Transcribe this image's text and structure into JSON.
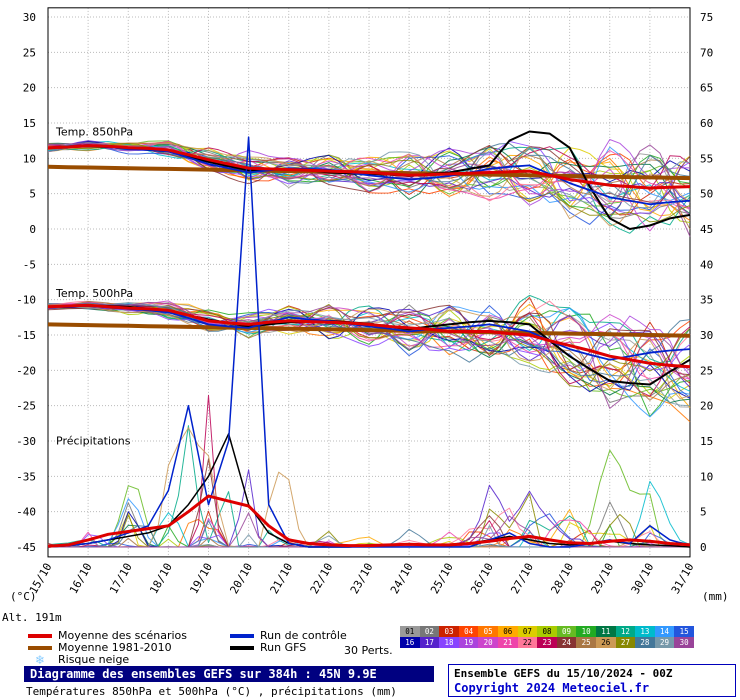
{
  "legend": {
    "items": [
      {
        "label": "Moyenne des scénarios",
        "color": "#dd0000",
        "type": "line"
      },
      {
        "label": "Moyenne 1981-2010",
        "color": "#994c00",
        "type": "line"
      },
      {
        "label": "Risque neige",
        "color": "#88ccff",
        "type": "snowflake"
      },
      {
        "label": "Run de contrôle",
        "color": "#0022cc",
        "type": "line"
      },
      {
        "label": "Run GFS",
        "color": "#000000",
        "type": "line"
      }
    ],
    "perts_label": "30 Perts.",
    "member_ids": [
      "01",
      "02",
      "03",
      "04",
      "05",
      "06",
      "07",
      "08",
      "09",
      "10",
      "11",
      "12",
      "13",
      "14",
      "15",
      "16",
      "17",
      "18",
      "19",
      "20",
      "21",
      "22",
      "23",
      "24",
      "25",
      "26",
      "27",
      "28",
      "29",
      "30"
    ]
  },
  "footer": {
    "title": "Diagramme des ensembles GEFS sur 384h : 45N 9.9E",
    "subtitle": "Températures 850hPa et 500hPa (°C) , précipitations (mm)",
    "run_info": "Ensemble GEFS du 15/10/2024 - 00Z",
    "copyright": "Copyright 2024 Meteociel.fr"
  },
  "chart_data": {
    "type": "line",
    "x_step_days": 0.5,
    "x_range_days": [
      0,
      16
    ],
    "axes": {
      "left_unit": "(°C)",
      "right_unit": "(mm)",
      "alt_label": "Alt. 191m",
      "left_ticks": [
        30,
        25,
        20,
        15,
        10,
        5,
        0,
        -5,
        -10,
        -15,
        -20,
        -25,
        -30,
        -35,
        -40,
        -45
      ],
      "right_ticks": [
        75,
        70,
        65,
        60,
        55,
        50,
        45,
        40,
        35,
        30,
        25,
        20,
        15,
        10,
        5,
        0
      ],
      "x_labels": [
        "15/10",
        "16/10",
        "17/10",
        "18/10",
        "19/10",
        "20/10",
        "21/10",
        "22/10",
        "23/10",
        "24/10",
        "25/10",
        "26/10",
        "27/10",
        "28/10",
        "29/10",
        "30/10",
        "31/10"
      ],
      "precip_zero_at_degC": -45
    },
    "panel_labels": {
      "t850": "Temp. 850hPa",
      "t500": "Temp. 500hPa",
      "precip": "Précipitations"
    },
    "colors": {
      "mean": "#dd0000",
      "clim": "#994c00",
      "control": "#0022cc",
      "gfs": "#000000",
      "grid": "#bbbbbb"
    },
    "series": {
      "t850": {
        "mean": [
          11.5,
          11.6,
          11.8,
          11.7,
          11.5,
          11.4,
          11.2,
          10.5,
          9.8,
          9.2,
          8.6,
          8.5,
          8.4,
          8.3,
          8.2,
          8.1,
          8.0,
          7.8,
          7.6,
          7.7,
          7.8,
          7.9,
          8.0,
          8.1,
          8.2,
          7.6,
          7.0,
          6.6,
          6.2,
          6.0,
          5.8,
          5.9,
          6.0
        ],
        "clim": [
          8.8,
          8.75,
          8.7,
          8.65,
          8.6,
          8.55,
          8.5,
          8.45,
          8.4,
          8.35,
          8.3,
          8.25,
          8.2,
          8.15,
          8.1,
          8.05,
          8.0,
          7.95,
          7.9,
          7.85,
          7.8,
          7.75,
          7.7,
          7.65,
          7.6,
          7.55,
          7.5,
          7.45,
          7.4,
          7.35,
          7.3,
          7.25,
          7.2
        ],
        "control": [
          11.5,
          11.7,
          11.9,
          11.6,
          11.3,
          11.2,
          11.0,
          10.1,
          9.2,
          8.6,
          8.0,
          8.3,
          8.6,
          8.5,
          8.4,
          8.0,
          7.6,
          7.3,
          7.0,
          7.2,
          7.5,
          8.0,
          8.5,
          8.8,
          9.0,
          7.8,
          6.5,
          5.5,
          4.5,
          4.0,
          3.5,
          3.8,
          4.0
        ],
        "gfs": [
          11.5,
          11.6,
          11.7,
          11.6,
          11.4,
          11.2,
          11.0,
          10.2,
          9.5,
          8.9,
          8.3,
          8.4,
          8.5,
          8.3,
          8.0,
          7.9,
          7.8,
          7.7,
          7.5,
          7.8,
          8.0,
          8.5,
          9.0,
          12.5,
          13.8,
          13.5,
          11.5,
          6.0,
          1.5,
          0.0,
          0.5,
          1.5,
          2.0
        ],
        "spread": [
          0.4,
          0.45,
          0.5,
          0.55,
          0.6,
          0.7,
          0.9,
          1.1,
          1.3,
          1.4,
          1.5,
          1.5,
          1.6,
          1.7,
          1.8,
          1.9,
          2.0,
          2.1,
          2.2,
          2.3,
          2.5,
          2.7,
          2.9,
          3.1,
          3.3,
          3.6,
          3.9,
          4.1,
          4.3,
          4.4,
          4.5,
          4.5,
          4.5
        ]
      },
      "t500": {
        "mean": [
          -11.0,
          -10.9,
          -10.8,
          -11.0,
          -11.2,
          -11.3,
          -11.5,
          -12.2,
          -13.0,
          -13.3,
          -13.5,
          -13.2,
          -13.0,
          -13.1,
          -13.2,
          -13.3,
          -13.5,
          -13.8,
          -14.0,
          -14.2,
          -14.5,
          -14.5,
          -14.5,
          -14.8,
          -15.0,
          -15.8,
          -16.5,
          -17.2,
          -18.0,
          -18.5,
          -19.0,
          -19.3,
          -19.5
        ],
        "clim": [
          -13.5,
          -13.55,
          -13.6,
          -13.65,
          -13.7,
          -13.75,
          -13.8,
          -13.85,
          -13.9,
          -13.95,
          -14.0,
          -14.05,
          -14.1,
          -14.15,
          -14.2,
          -14.25,
          -14.3,
          -14.35,
          -14.4,
          -14.45,
          -14.5,
          -14.55,
          -14.6,
          -14.65,
          -14.7,
          -14.75,
          -14.8,
          -14.85,
          -14.9,
          -14.95,
          -15.0,
          -15.05,
          -15.1
        ],
        "control": [
          -11.0,
          -10.9,
          -10.9,
          -11.1,
          -11.3,
          -11.5,
          -11.8,
          -12.6,
          -13.5,
          -13.8,
          -14.0,
          -13.2,
          -12.5,
          -12.8,
          -13.0,
          -13.4,
          -13.8,
          -14.1,
          -14.5,
          -14.2,
          -14.0,
          -13.8,
          -13.5,
          -14.0,
          -14.5,
          -15.8,
          -17.0,
          -17.8,
          -18.5,
          -18.0,
          -17.5,
          -17.2,
          -17.0
        ],
        "gfs": [
          -11.0,
          -10.9,
          -10.8,
          -10.9,
          -11.0,
          -11.3,
          -11.6,
          -12.2,
          -12.8,
          -13.3,
          -13.8,
          -13.5,
          -13.2,
          -13.1,
          -13.0,
          -13.2,
          -13.4,
          -13.8,
          -14.2,
          -13.8,
          -13.5,
          -13.2,
          -13.0,
          -13.2,
          -13.5,
          -15.8,
          -18.0,
          -19.8,
          -21.5,
          -21.8,
          -22.0,
          -20.2,
          -18.5
        ],
        "spread": [
          0.3,
          0.35,
          0.4,
          0.5,
          0.6,
          0.7,
          0.9,
          1.0,
          1.1,
          1.2,
          1.3,
          1.4,
          1.5,
          1.6,
          1.8,
          1.9,
          2.0,
          2.2,
          2.4,
          2.6,
          2.8,
          3.0,
          3.2,
          3.4,
          3.6,
          3.9,
          4.2,
          4.4,
          4.6,
          4.8,
          5.0,
          5.0,
          5.0
        ]
      },
      "precip": {
        "mean": [
          0.1,
          0.3,
          1.0,
          1.8,
          2.2,
          2.6,
          3.0,
          5.0,
          7.2,
          6.5,
          5.8,
          3.0,
          1.0,
          0.5,
          0.3,
          0.2,
          0.2,
          0.3,
          0.4,
          0.3,
          0.3,
          0.5,
          0.8,
          1.2,
          1.5,
          1.0,
          0.6,
          0.5,
          0.8,
          1.0,
          0.8,
          0.5,
          0.3
        ],
        "control": [
          0,
          0.2,
          0.5,
          1.0,
          2.0,
          3.0,
          8.0,
          20.0,
          6.0,
          15.0,
          58.0,
          6.0,
          0.5,
          0,
          0,
          0,
          0,
          0,
          0,
          0,
          0,
          0,
          1.0,
          2.0,
          0.5,
          0,
          0,
          0.5,
          1.0,
          0.5,
          3.0,
          1.0,
          0.2
        ],
        "gfs": [
          0,
          0.2,
          0.5,
          1.0,
          1.5,
          2.0,
          3.0,
          6.0,
          10.0,
          16.0,
          6.0,
          2.0,
          0.5,
          0,
          0,
          0,
          0.2,
          0.3,
          0.4,
          0.3,
          0.2,
          0.5,
          1.0,
          1.5,
          1.0,
          0.5,
          0.3,
          0.5,
          0.8,
          0.5,
          0.3,
          0.2,
          0
        ],
        "member_max": [
          0.5,
          1,
          3,
          6,
          10,
          14,
          20,
          26,
          28,
          24,
          20,
          14,
          8,
          4,
          2,
          1,
          1,
          1,
          1.5,
          2,
          2,
          4,
          8,
          12,
          10,
          6,
          5,
          8,
          12,
          16,
          12,
          8,
          3
        ]
      }
    },
    "ensemble": {
      "count": 30,
      "member_colors": [
        "#999999",
        "#777777",
        "#cc2200",
        "#ff4400",
        "#ff7700",
        "#ffaa00",
        "#ddcc00",
        "#aacc00",
        "#66bb22",
        "#22aa22",
        "#007744",
        "#00aa88",
        "#00bbcc",
        "#3399ff",
        "#2255dd",
        "#0000aa",
        "#5522cc",
        "#8844ff",
        "#aa44dd",
        "#cc44cc",
        "#ee44aa",
        "#ff7799",
        "#bb0055",
        "#883333",
        "#aa7744",
        "#cc9955",
        "#888800",
        "#447799",
        "#7799aa",
        "#994499"
      ]
    }
  }
}
